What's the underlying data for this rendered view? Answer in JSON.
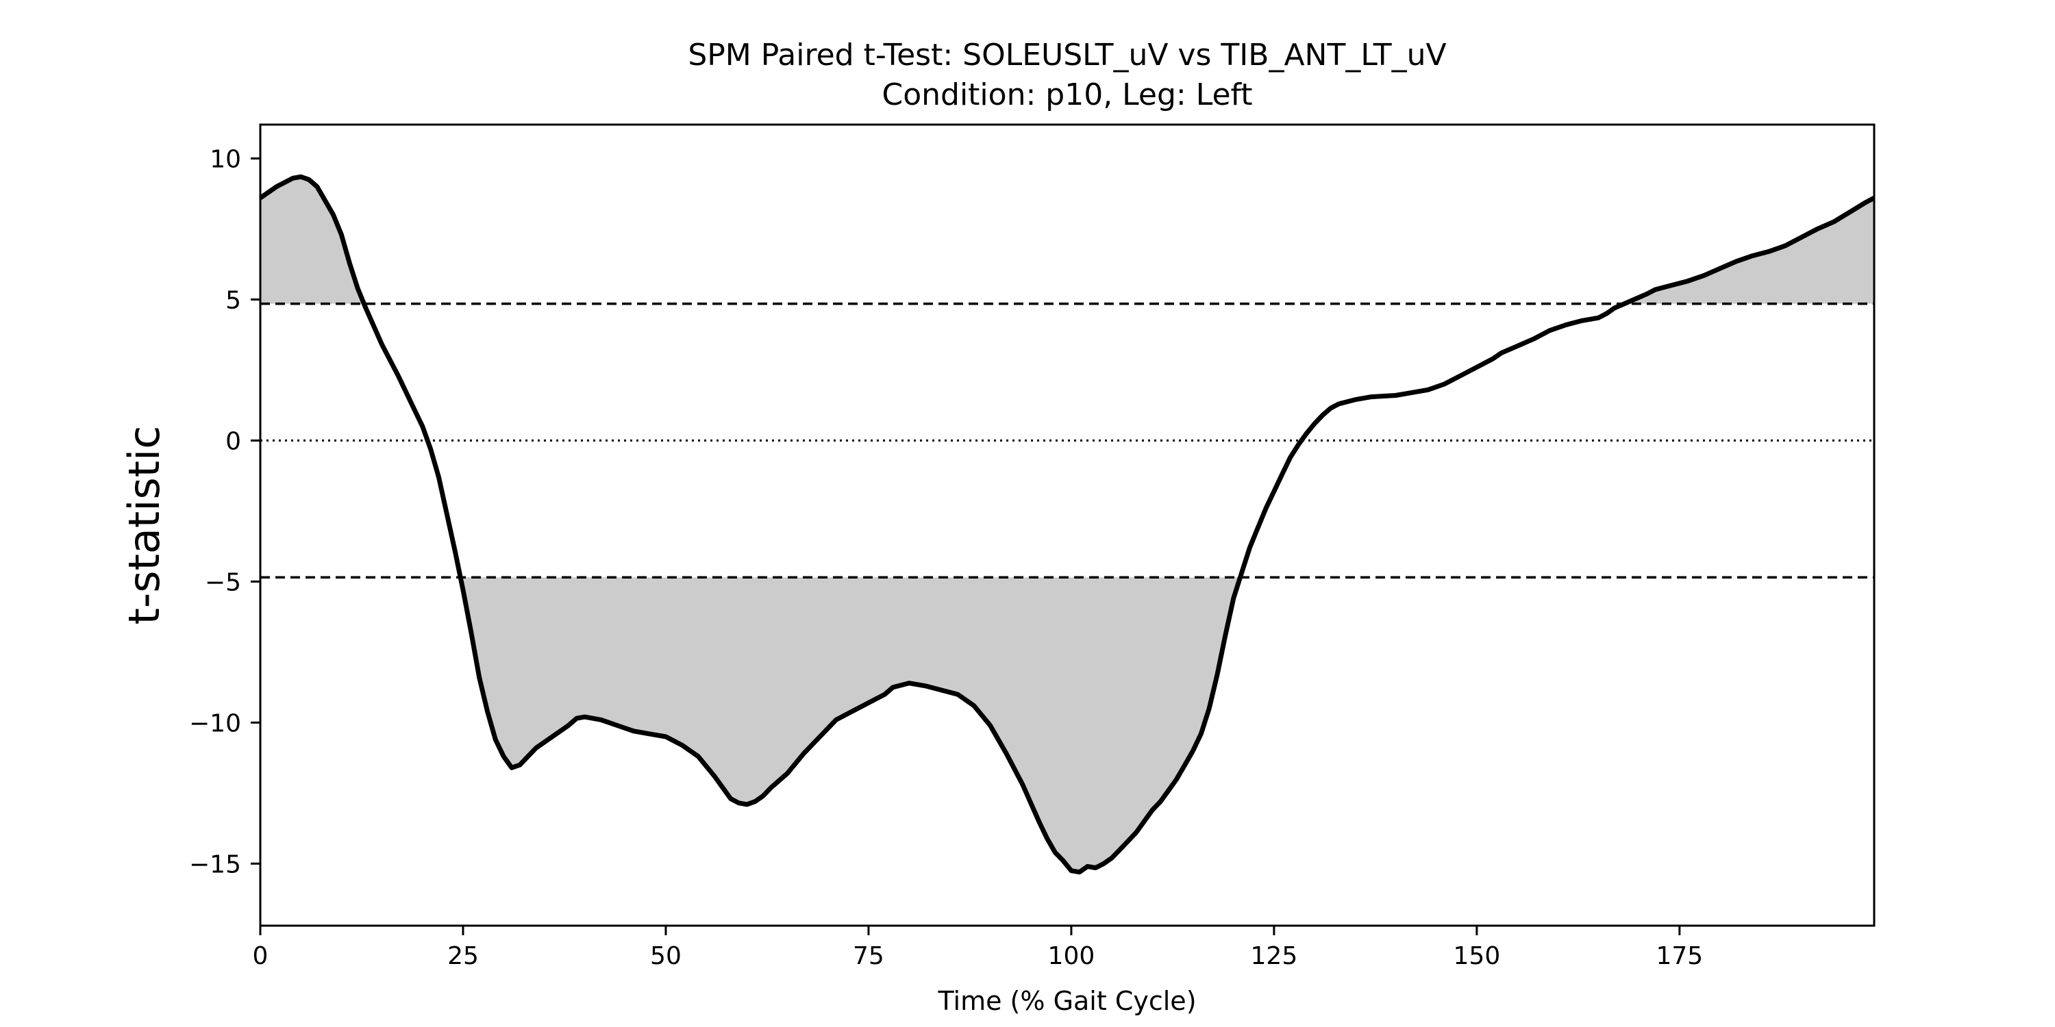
{
  "chart_data": {
    "type": "line",
    "title": "SPM Paired t-Test: SOLEUSLT_uV vs TIB_ANT_LT_uV",
    "subtitle": "Condition: p10, Leg: Left",
    "xlabel": "Time (% Gait Cycle)",
    "ylabel": "t-statistic",
    "xlim": [
      0,
      199
    ],
    "ylim": [
      -17.2,
      11.2
    ],
    "xticks": [
      0,
      25,
      50,
      75,
      100,
      125,
      150,
      175
    ],
    "yticks": [
      10,
      5,
      0,
      -5,
      -10,
      -15
    ],
    "ytick_labels": [
      "10",
      "5",
      "0",
      "−5",
      "−10",
      "−15"
    ],
    "threshold": 4.85,
    "zero_line": 0,
    "grid": false,
    "colors": {
      "line": "#000000",
      "fill": "#cccccc",
      "threshold_line": "#000000"
    },
    "series": [
      {
        "points": [
          [
            0,
            8.6
          ],
          [
            2,
            9.0
          ],
          [
            4,
            9.3
          ],
          [
            5,
            9.35
          ],
          [
            6,
            9.25
          ],
          [
            7,
            9.0
          ],
          [
            9,
            8.0
          ],
          [
            10,
            7.3
          ],
          [
            11,
            6.3
          ],
          [
            12,
            5.4
          ],
          [
            13,
            4.7
          ],
          [
            15,
            3.4
          ],
          [
            17,
            2.3
          ],
          [
            19,
            1.1
          ],
          [
            20,
            0.5
          ],
          [
            21,
            -0.3
          ],
          [
            22,
            -1.3
          ],
          [
            23,
            -2.6
          ],
          [
            24,
            -3.9
          ],
          [
            25,
            -5.3
          ],
          [
            26,
            -6.8
          ],
          [
            27,
            -8.4
          ],
          [
            28,
            -9.6
          ],
          [
            29,
            -10.6
          ],
          [
            30,
            -11.2
          ],
          [
            31,
            -11.6
          ],
          [
            32,
            -11.5
          ],
          [
            33,
            -11.2
          ],
          [
            34,
            -10.9
          ],
          [
            36,
            -10.5
          ],
          [
            38,
            -10.1
          ],
          [
            39,
            -9.85
          ],
          [
            40,
            -9.8
          ],
          [
            42,
            -9.9
          ],
          [
            44,
            -10.1
          ],
          [
            46,
            -10.3
          ],
          [
            48,
            -10.4
          ],
          [
            50,
            -10.5
          ],
          [
            52,
            -10.8
          ],
          [
            54,
            -11.2
          ],
          [
            56,
            -11.9
          ],
          [
            57,
            -12.3
          ],
          [
            58,
            -12.7
          ],
          [
            59,
            -12.85
          ],
          [
            60,
            -12.9
          ],
          [
            61,
            -12.8
          ],
          [
            62,
            -12.6
          ],
          [
            63,
            -12.3
          ],
          [
            65,
            -11.8
          ],
          [
            67,
            -11.1
          ],
          [
            69,
            -10.5
          ],
          [
            71,
            -9.9
          ],
          [
            73,
            -9.6
          ],
          [
            75,
            -9.3
          ],
          [
            77,
            -9.0
          ],
          [
            78,
            -8.75
          ],
          [
            80,
            -8.6
          ],
          [
            82,
            -8.7
          ],
          [
            84,
            -8.85
          ],
          [
            86,
            -9.0
          ],
          [
            88,
            -9.4
          ],
          [
            90,
            -10.1
          ],
          [
            92,
            -11.1
          ],
          [
            94,
            -12.2
          ],
          [
            96,
            -13.5
          ],
          [
            97,
            -14.1
          ],
          [
            98,
            -14.6
          ],
          [
            99,
            -14.9
          ],
          [
            100,
            -15.25
          ],
          [
            101,
            -15.3
          ],
          [
            102,
            -15.1
          ],
          [
            103,
            -15.15
          ],
          [
            104,
            -15.0
          ],
          [
            105,
            -14.8
          ],
          [
            106,
            -14.5
          ],
          [
            108,
            -13.9
          ],
          [
            110,
            -13.1
          ],
          [
            111,
            -12.8
          ],
          [
            112,
            -12.4
          ],
          [
            113,
            -12.0
          ],
          [
            114,
            -11.5
          ],
          [
            115,
            -11.0
          ],
          [
            116,
            -10.4
          ],
          [
            117,
            -9.5
          ],
          [
            118,
            -8.3
          ],
          [
            119,
            -6.9
          ],
          [
            120,
            -5.6
          ],
          [
            121,
            -4.7
          ],
          [
            122,
            -3.8
          ],
          [
            123,
            -3.1
          ],
          [
            124,
            -2.4
          ],
          [
            125,
            -1.8
          ],
          [
            126,
            -1.2
          ],
          [
            127,
            -0.6
          ],
          [
            128,
            -0.15
          ],
          [
            129,
            0.25
          ],
          [
            130,
            0.6
          ],
          [
            131,
            0.9
          ],
          [
            132,
            1.15
          ],
          [
            133,
            1.3
          ],
          [
            135,
            1.45
          ],
          [
            137,
            1.55
          ],
          [
            140,
            1.6
          ],
          [
            142,
            1.7
          ],
          [
            144,
            1.8
          ],
          [
            146,
            2.0
          ],
          [
            148,
            2.3
          ],
          [
            150,
            2.6
          ],
          [
            152,
            2.9
          ],
          [
            153,
            3.1
          ],
          [
            155,
            3.35
          ],
          [
            157,
            3.6
          ],
          [
            159,
            3.9
          ],
          [
            161,
            4.1
          ],
          [
            163,
            4.25
          ],
          [
            165,
            4.35
          ],
          [
            166,
            4.5
          ],
          [
            167,
            4.7
          ],
          [
            169,
            4.95
          ],
          [
            171,
            5.2
          ],
          [
            172,
            5.35
          ],
          [
            174,
            5.5
          ],
          [
            176,
            5.65
          ],
          [
            178,
            5.85
          ],
          [
            180,
            6.1
          ],
          [
            182,
            6.35
          ],
          [
            184,
            6.55
          ],
          [
            186,
            6.7
          ],
          [
            188,
            6.9
          ],
          [
            190,
            7.2
          ],
          [
            192,
            7.5
          ],
          [
            194,
            7.75
          ],
          [
            196,
            8.1
          ],
          [
            198,
            8.45
          ],
          [
            199,
            8.6
          ]
        ]
      }
    ]
  }
}
